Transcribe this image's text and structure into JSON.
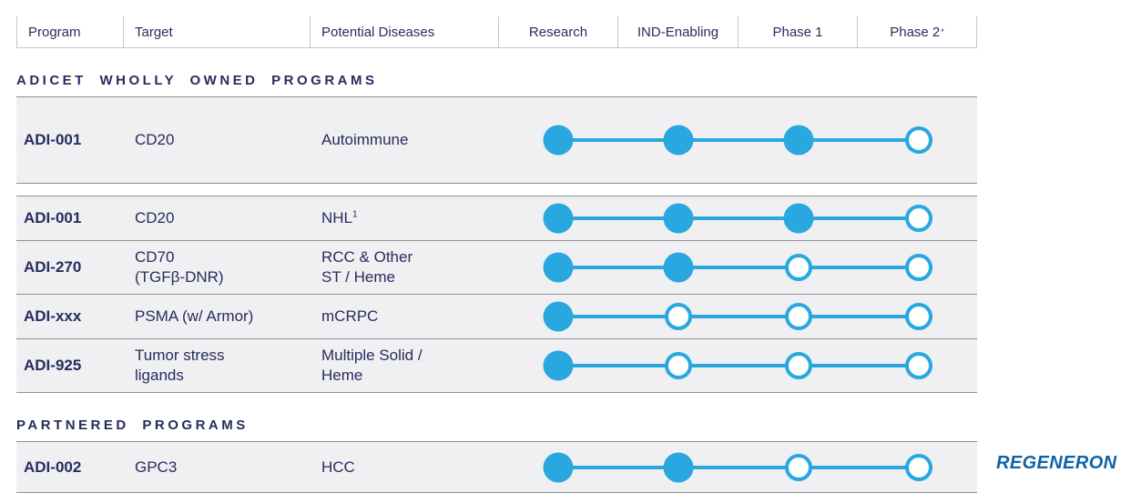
{
  "colors": {
    "navy": "#262d5e",
    "accent_blue": "#29a8e0",
    "row_bg": "#f0eff2",
    "row_border": "#8e8e96",
    "header_border": "#c6c6d2",
    "regeneron_blue": "#0f63a9"
  },
  "header": {
    "columns": [
      {
        "label": "Program",
        "sup": ""
      },
      {
        "label": "Target",
        "sup": ""
      },
      {
        "label": "Potential Diseases",
        "sup": ""
      },
      {
        "label": "Research",
        "sup": ""
      },
      {
        "label": "IND-Enabling",
        "sup": ""
      },
      {
        "label": "Phase 1",
        "sup": ""
      },
      {
        "label": "Phase 2",
        "sup": "*"
      }
    ]
  },
  "stages": [
    "Research",
    "IND-Enabling",
    "Phase 1",
    "Phase 2"
  ],
  "sections": [
    {
      "title": "ADICET WHOLLY OWNED PROGRAMS",
      "blocks": [
        {
          "rows": [
            {
              "program": "ADI-001",
              "target": [
                "CD20"
              ],
              "diseases": [
                {
                  "text": "Autoimmune",
                  "sup": ""
                }
              ],
              "stages": [
                "filled",
                "filled",
                "filled",
                "open"
              ]
            }
          ]
        },
        {
          "rows": [
            {
              "program": "ADI-001",
              "target": [
                "CD20"
              ],
              "diseases": [
                {
                  "text": "NHL",
                  "sup": "1"
                }
              ],
              "stages": [
                "filled",
                "filled",
                "filled",
                "open"
              ]
            },
            {
              "program": "ADI-270",
              "target": [
                "CD70",
                "(TGFβ-DNR)"
              ],
              "diseases": [
                {
                  "text": "RCC & Other",
                  "sup": ""
                },
                {
                  "text": "ST / Heme",
                  "sup": ""
                }
              ],
              "stages": [
                "filled",
                "filled",
                "open",
                "open"
              ]
            },
            {
              "program": "ADI-xxx",
              "target": [
                "PSMA (w/ Armor)"
              ],
              "diseases": [
                {
                  "text": "mCRPC",
                  "sup": ""
                }
              ],
              "stages": [
                "filled",
                "open",
                "open",
                "open"
              ]
            },
            {
              "program": "ADI-925",
              "target": [
                "Tumor stress",
                "ligands"
              ],
              "diseases": [
                {
                  "text": "Multiple Solid /",
                  "sup": ""
                },
                {
                  "text": "Heme",
                  "sup": ""
                }
              ],
              "stages": [
                "filled",
                "open",
                "open",
                "open"
              ]
            }
          ]
        }
      ]
    },
    {
      "title": "PARTNERED PROGRAMS",
      "blocks": [
        {
          "rows": [
            {
              "program": "ADI-002",
              "target": [
                "GPC3"
              ],
              "diseases": [
                {
                  "text": "HCC",
                  "sup": ""
                }
              ],
              "stages": [
                "filled",
                "filled",
                "open",
                "open"
              ]
            }
          ]
        }
      ]
    }
  ],
  "partner_logo": "REGENERON"
}
